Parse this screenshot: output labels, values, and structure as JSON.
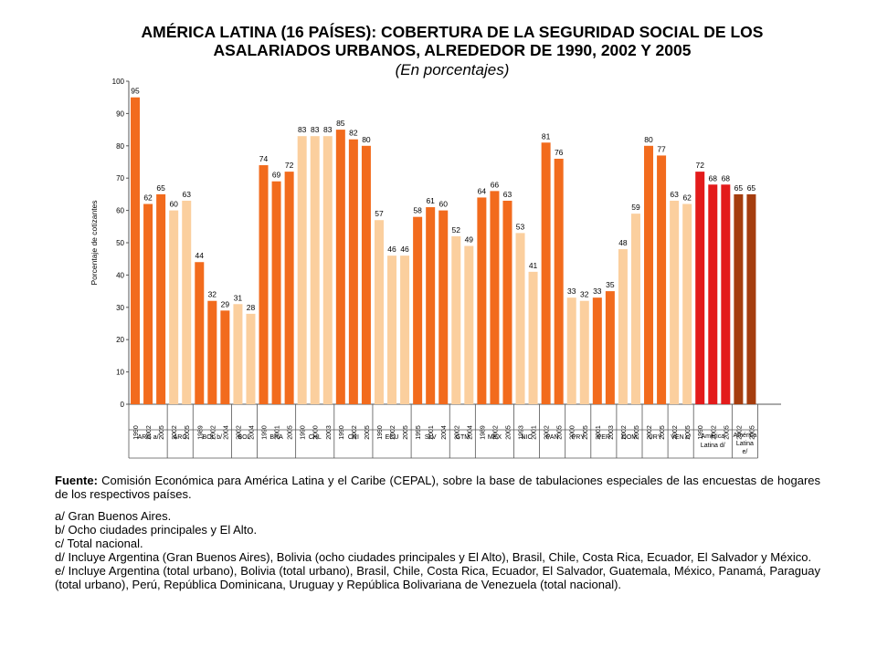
{
  "chart_data": {
    "type": "bar",
    "title": "AMÉRICA LATINA (16 PAÍSES): COBERTURA DE LA SEGURIDAD SOCIAL DE LOS ASALARIADOS URBANOS, ALREDEDOR DE 1990, 2002 Y 2005",
    "title_line1": "AMÉRICA LATINA (16 PAÍSES): COBERTURA DE LA SEGURIDAD SOCIAL DE LOS",
    "title_line2": "ASALARIADOS URBANOS, ALREDEDOR DE 1990, 2002 Y 2005",
    "subtitle": "(En porcentajes)",
    "ylabel": "Porcentaje de cotizantes",
    "xlabel": "",
    "ylim": [
      0,
      100
    ],
    "yticks": [
      0,
      10,
      20,
      30,
      40,
      50,
      60,
      70,
      80,
      90,
      100
    ],
    "grid": false,
    "legend": "none",
    "colors": {
      "dark": "#f26b1d",
      "light": "#fbcf9e",
      "region": "#e31b1b",
      "region_alt": "#a53d0e"
    },
    "groups": [
      {
        "label": "ARG a/",
        "years": [
          "1990",
          "2002",
          "2005"
        ],
        "values": [
          95,
          62,
          65
        ],
        "color": "dark"
      },
      {
        "label": "ARG",
        "years": [
          "2002",
          "2005"
        ],
        "values": [
          60,
          63
        ],
        "color": "light"
      },
      {
        "label": "BOL b/",
        "years": [
          "1989",
          "2002",
          "2004"
        ],
        "values": [
          44,
          32,
          29
        ],
        "color": "dark"
      },
      {
        "label": "BOL",
        "years": [
          "2002",
          "2004"
        ],
        "values": [
          31,
          28
        ],
        "color": "light"
      },
      {
        "label": "BRA",
        "years": [
          "1990",
          "2001",
          "2005"
        ],
        "values": [
          74,
          69,
          72
        ],
        "color": "dark"
      },
      {
        "label": "CHL",
        "years": [
          "1990",
          "2000",
          "2003"
        ],
        "values": [
          83,
          83,
          83
        ],
        "color": "light"
      },
      {
        "label": "CRI",
        "years": [
          "1990",
          "2002",
          "2005"
        ],
        "values": [
          85,
          82,
          80
        ],
        "color": "dark"
      },
      {
        "label": "ECU",
        "years": [
          "1990",
          "2002",
          "2005"
        ],
        "values": [
          57,
          46,
          46
        ],
        "color": "light"
      },
      {
        "label": "SLV",
        "years": [
          "1995",
          "2001",
          "2004"
        ],
        "values": [
          58,
          61,
          60
        ],
        "color": "dark"
      },
      {
        "label": "GTM",
        "years": [
          "2002",
          "2004"
        ],
        "values": [
          52,
          49
        ],
        "color": "light"
      },
      {
        "label": "MEX",
        "years": [
          "1989",
          "2002",
          "2005"
        ],
        "values": [
          64,
          66,
          63
        ],
        "color": "dark"
      },
      {
        "label": "NIC",
        "years": [
          "1993",
          "2001"
        ],
        "values": [
          53,
          41
        ],
        "color": "light"
      },
      {
        "label": "PAN",
        "years": [
          "2002",
          "2005"
        ],
        "values": [
          81,
          76
        ],
        "color": "dark"
      },
      {
        "label": "PRY",
        "years": [
          "2000",
          "2005"
        ],
        "values": [
          33,
          32
        ],
        "color": "light"
      },
      {
        "label": "PER",
        "years": [
          "2001",
          "2003"
        ],
        "values": [
          33,
          35
        ],
        "color": "dark"
      },
      {
        "label": "DOM",
        "years": [
          "2002",
          "2005"
        ],
        "values": [
          48,
          59
        ],
        "color": "light"
      },
      {
        "label": "URY",
        "years": [
          "2002",
          "2005"
        ],
        "values": [
          80,
          77
        ],
        "color": "dark"
      },
      {
        "label": "VEN c/",
        "years": [
          "2002",
          "2005"
        ],
        "values": [
          63,
          62
        ],
        "color": "light"
      },
      {
        "label": "América Latina d/",
        "years": [
          "1990",
          "2002",
          "2005"
        ],
        "values": [
          72,
          68,
          68
        ],
        "color": "region"
      },
      {
        "label": "América Latina e/",
        "years": [
          "2002",
          "2005"
        ],
        "values": [
          65,
          65
        ],
        "color": "region_alt"
      }
    ]
  },
  "notes": {
    "source_label": "Fuente:",
    "source_text": " Comisión Económica para América Latina y el Caribe (CEPAL), sobre la base de tabulaciones especiales de las encuestas de hogares de los respectivos países.",
    "a": "a/ Gran Buenos Aires.",
    "b": "b/ Ocho ciudades principales y El Alto.",
    "c": "c/ Total nacional.",
    "d": "d/ Incluye Argentina (Gran Buenos Aires), Bolivia (ocho ciudades principales y El Alto), Brasil, Chile, Costa Rica, Ecuador, El Salvador y México.",
    "e": "e/ Incluye Argentina (total urbano), Bolivia (total urbano), Brasil, Chile, Costa Rica, Ecuador, El Salvador, Guatemala, México, Panamá, Paraguay (total urbano), Perú, República Dominicana, Uruguay y República Bolivariana de Venezuela (total nacional)."
  }
}
